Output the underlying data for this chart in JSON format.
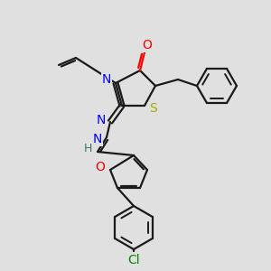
{
  "background_color": "#e0e0e0",
  "figsize": [
    3.0,
    3.0
  ],
  "dpi": 100,
  "colors": {
    "black": "#1a1a1a",
    "blue": "#0000ff",
    "red": "#ff0000",
    "yellow_s": "#aaaa00",
    "green_cl": "#008800",
    "gray_h": "#607070",
    "teal_h": "#407070"
  },
  "layout": {
    "xlim": [
      0,
      300
    ],
    "ylim": [
      0,
      300
    ]
  }
}
